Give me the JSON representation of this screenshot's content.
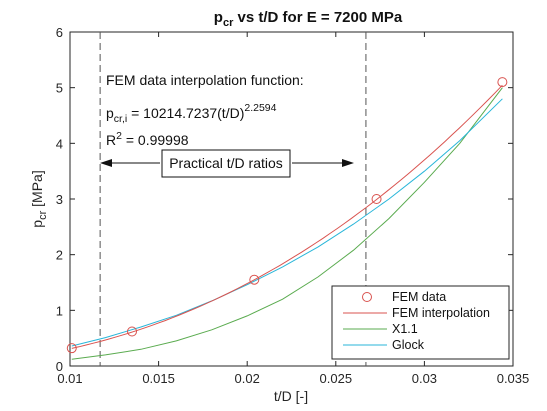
{
  "chart_data": {
    "type": "line",
    "title_main": "p",
    "title_sub": "cr",
    "title_rest": " vs t/D for E = 7200 MPa",
    "xlabel": "t/D [-]",
    "ylabel_main": "p",
    "ylabel_sub": "cr",
    "ylabel_unit": " [MPa]",
    "xlim": [
      0.01,
      0.035
    ],
    "ylim": [
      0,
      6
    ],
    "xticks": [
      0.01,
      0.015,
      0.02,
      0.025,
      0.03,
      0.035
    ],
    "xtick_labels": [
      "0.01",
      "0.015",
      "0.02",
      "0.025",
      "0.03",
      "0.035"
    ],
    "yticks": [
      0,
      1,
      2,
      3,
      4,
      5,
      6
    ],
    "ytick_labels": [
      "0",
      "1",
      "2",
      "3",
      "4",
      "5",
      "6"
    ],
    "grid": false,
    "legend_position": "bottom-right",
    "vlines": [
      0.0117,
      0.0267
    ],
    "annotations": {
      "fit_header": "FEM data interpolation function:",
      "fit_eq_main": "p",
      "fit_eq_sub": "cr,i",
      "fit_eq_mid": " = 10214.7237(t/D)",
      "fit_eq_exp": "2.2594",
      "r2_main": "R",
      "r2_exp": "2",
      "r2_rest": " = 0.99998",
      "range_label": "Practical t/D ratios"
    },
    "series": [
      {
        "name": "FEM data",
        "kind": "markers",
        "color": "#d9534f",
        "x": [
          0.0101,
          0.0135,
          0.0204,
          0.0273,
          0.0344
        ],
        "y": [
          0.32,
          0.62,
          1.55,
          3.0,
          5.1
        ]
      },
      {
        "name": "FEM interpolation",
        "kind": "line",
        "color": "#d9534f",
        "formula": {
          "a": 10214.7237,
          "b": 2.2594
        },
        "x_range": [
          0.0101,
          0.0344
        ]
      },
      {
        "name": "X1.1",
        "kind": "line",
        "color": "#5aab4f",
        "x": [
          0.0101,
          0.012,
          0.014,
          0.016,
          0.018,
          0.02,
          0.022,
          0.024,
          0.026,
          0.028,
          0.03,
          0.032,
          0.0344
        ],
        "y": [
          0.12,
          0.2,
          0.3,
          0.45,
          0.65,
          0.9,
          1.2,
          1.6,
          2.08,
          2.65,
          3.3,
          4.0,
          5.0
        ]
      },
      {
        "name": "Glock",
        "kind": "line",
        "color": "#29b6d9",
        "x": [
          0.0101,
          0.012,
          0.014,
          0.016,
          0.018,
          0.02,
          0.022,
          0.024,
          0.026,
          0.028,
          0.03,
          0.032,
          0.0344
        ],
        "y": [
          0.36,
          0.51,
          0.7,
          0.91,
          1.17,
          1.46,
          1.78,
          2.14,
          2.55,
          3.0,
          3.5,
          4.05,
          4.8
        ]
      }
    ]
  }
}
